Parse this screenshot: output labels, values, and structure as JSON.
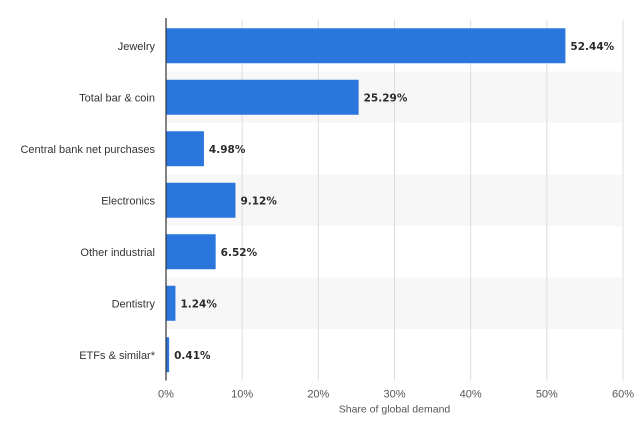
{
  "chart_data": {
    "type": "bar",
    "orientation": "horizontal",
    "categories": [
      "Jewelry",
      "Total bar & coin",
      "Central bank net purchases",
      "Electronics",
      "Other industrial",
      "Dentistry",
      "ETFs & similar*"
    ],
    "values": [
      52.44,
      25.29,
      4.98,
      9.12,
      6.52,
      1.24,
      0.41
    ],
    "value_labels": [
      "52.44%",
      "25.29%",
      "4.98%",
      "9.12%",
      "6.52%",
      "1.24%",
      "0.41%"
    ],
    "xlabel": "Share of global demand",
    "xlim": [
      0,
      60
    ],
    "xticks": [
      0,
      10,
      20,
      30,
      40,
      50,
      60
    ],
    "xtick_labels": [
      "0%",
      "10%",
      "20%",
      "30%",
      "40%",
      "50%",
      "60%"
    ],
    "grid": true,
    "alternating_row_bands": true,
    "bar_color": "#2a76dd",
    "band_color": "#f7f7f7",
    "grid_color": "#dddddd",
    "axis_color": "#333333"
  }
}
